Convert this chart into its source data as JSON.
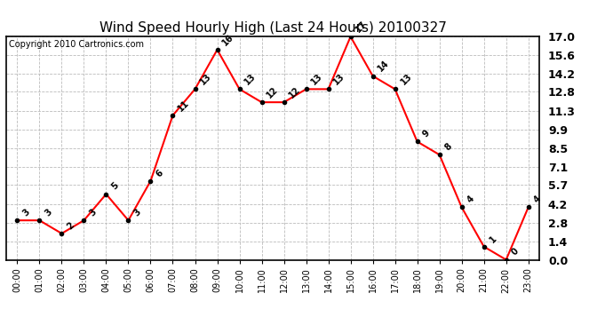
{
  "title": "Wind Speed Hourly High (Last 24 Hours) 20100327",
  "copyright": "Copyright 2010 Cartronics.com",
  "hours": [
    "00:00",
    "01:00",
    "02:00",
    "03:00",
    "04:00",
    "05:00",
    "06:00",
    "07:00",
    "08:00",
    "09:00",
    "10:00",
    "11:00",
    "12:00",
    "13:00",
    "14:00",
    "15:00",
    "16:00",
    "17:00",
    "18:00",
    "19:00",
    "20:00",
    "21:00",
    "22:00",
    "23:00"
  ],
  "values": [
    3,
    3,
    2,
    3,
    5,
    3,
    6,
    11,
    13,
    16,
    13,
    12,
    12,
    13,
    13,
    17,
    14,
    13,
    9,
    8,
    4,
    1,
    0,
    4
  ],
  "labels": [
    "3",
    "3",
    "2",
    "3",
    "5",
    "3",
    "6",
    "11",
    "13",
    "16",
    "13",
    "12",
    "12",
    "13",
    "13",
    "17",
    "14",
    "13",
    "9",
    "8",
    "4",
    "1",
    "0",
    "4"
  ],
  "ylim": [
    0.0,
    17.0
  ],
  "yticks": [
    0.0,
    1.4,
    2.8,
    4.2,
    5.7,
    7.1,
    8.5,
    9.9,
    11.3,
    12.8,
    14.2,
    15.6,
    17.0
  ],
  "ytick_labels": [
    "0.0",
    "1.4",
    "2.8",
    "4.2",
    "5.7",
    "7.1",
    "8.5",
    "9.9",
    "11.3",
    "12.8",
    "14.2",
    "15.6",
    "17.0"
  ],
  "line_color": "#ff0000",
  "marker_color": "#000000",
  "grid_color": "#bbbbbb",
  "bg_color": "#ffffff",
  "title_fontsize": 11,
  "label_fontsize": 7,
  "copyright_fontsize": 7,
  "ytick_fontsize": 9,
  "xtick_fontsize": 7
}
